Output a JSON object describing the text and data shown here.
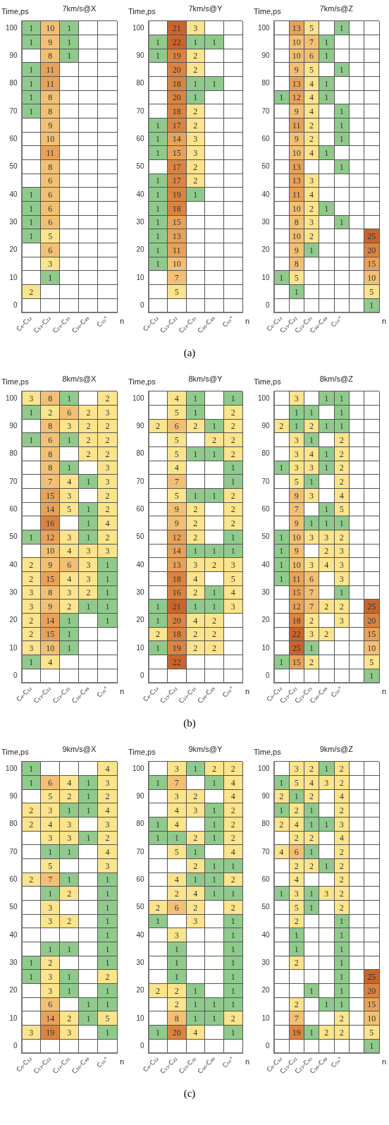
{
  "chart_data": [
    {
      "type": "heatmap",
      "title": "7km/s@X",
      "xlabel": "n",
      "ylabel": "Time,ps",
      "grid": true,
      "data_labels": true,
      "categories": [
        "C₆-C₁₂",
        "C₁₃-C₂₂",
        "C₂₃-C₃₅",
        "C₃₆-C₄₉",
        "C₅₀⁺"
      ],
      "y_categories": [
        "100",
        null,
        "90",
        null,
        "80",
        null,
        "70",
        null,
        "60",
        null,
        "50",
        null,
        "40",
        null,
        "30",
        null,
        "20",
        null,
        "10",
        null,
        "0"
      ],
      "cells": [
        [
          1,
          10,
          1,
          null,
          null
        ],
        [
          1,
          9,
          1,
          null,
          null
        ],
        [
          null,
          8,
          1,
          null,
          null
        ],
        [
          1,
          11,
          null,
          null,
          null
        ],
        [
          1,
          11,
          null,
          null,
          null
        ],
        [
          1,
          8,
          null,
          null,
          null
        ],
        [
          1,
          8,
          null,
          null,
          null
        ],
        [
          null,
          9,
          null,
          null,
          null
        ],
        [
          null,
          10,
          null,
          null,
          null
        ],
        [
          null,
          11,
          null,
          null,
          null
        ],
        [
          null,
          8,
          null,
          null,
          null
        ],
        [
          null,
          6,
          null,
          null,
          null
        ],
        [
          1,
          6,
          null,
          null,
          null
        ],
        [
          1,
          6,
          null,
          null,
          null
        ],
        [
          1,
          6,
          null,
          null,
          null
        ],
        [
          1,
          5,
          null,
          null,
          null
        ],
        [
          null,
          6,
          null,
          null,
          null
        ],
        [
          null,
          3,
          null,
          null,
          null
        ],
        [
          null,
          1,
          null,
          null,
          null
        ],
        [
          2,
          null,
          null,
          null,
          null
        ],
        [
          null,
          null,
          null,
          null,
          null
        ]
      ]
    },
    {
      "type": "heatmap",
      "title": "7km/s@Y",
      "xlabel": "n",
      "ylabel": "Time,ps",
      "grid": true,
      "data_labels": true,
      "annotations": [
        "(a)"
      ],
      "categories": [
        "C₆-C₁₂",
        "C₁₃-C₂₂",
        "C₂₃-C₃₅",
        "C₃₆-C₄₉",
        "C₅₀⁺"
      ],
      "y_categories": [
        "100",
        null,
        "90",
        null,
        "80",
        null,
        "70",
        null,
        "60",
        null,
        "50",
        null,
        "40",
        null,
        "30",
        null,
        "20",
        null,
        "10",
        null,
        "0"
      ],
      "cells": [
        [
          null,
          21,
          3,
          null,
          null
        ],
        [
          1,
          22,
          1,
          1,
          null
        ],
        [
          1,
          19,
          2,
          null,
          null
        ],
        [
          null,
          20,
          2,
          null,
          null
        ],
        [
          null,
          18,
          1,
          1,
          null
        ],
        [
          null,
          20,
          1,
          null,
          null
        ],
        [
          null,
          18,
          2,
          null,
          null
        ],
        [
          1,
          17,
          2,
          null,
          null
        ],
        [
          1,
          14,
          3,
          null,
          null
        ],
        [
          1,
          15,
          3,
          null,
          null
        ],
        [
          null,
          17,
          2,
          null,
          null
        ],
        [
          1,
          17,
          2,
          null,
          null
        ],
        [
          1,
          19,
          1,
          null,
          null
        ],
        [
          1,
          18,
          null,
          null,
          null
        ],
        [
          1,
          15,
          null,
          null,
          null
        ],
        [
          1,
          13,
          null,
          null,
          null
        ],
        [
          1,
          11,
          null,
          null,
          null
        ],
        [
          1,
          10,
          null,
          null,
          null
        ],
        [
          null,
          7,
          null,
          null,
          null
        ],
        [
          null,
          5,
          null,
          null,
          null
        ],
        [
          null,
          null,
          null,
          null,
          null
        ]
      ]
    },
    {
      "type": "heatmap",
      "title": "7km/s@Z",
      "xlabel": "n",
      "ylabel": "Time,ps",
      "grid": true,
      "data_labels": true,
      "categories": [
        "C₆-C₁₂",
        "C₁₃-C₂₂",
        "C₂₃-C₃₅",
        "C₃₆-C₄₉",
        "C₅₀⁺",
        null,
        null
      ],
      "y_categories": [
        "100",
        null,
        "90",
        null,
        "80",
        null,
        "70",
        null,
        "60",
        null,
        "50",
        null,
        "40",
        null,
        "30",
        null,
        "20",
        null,
        "10",
        null,
        "0"
      ],
      "cells": [
        [
          null,
          13,
          5,
          null,
          1,
          null,
          null
        ],
        [
          null,
          10,
          7,
          1,
          null,
          null,
          null
        ],
        [
          null,
          10,
          6,
          1,
          null,
          null,
          null
        ],
        [
          null,
          9,
          5,
          null,
          1,
          null,
          null
        ],
        [
          null,
          13,
          4,
          1,
          null,
          null,
          null
        ],
        [
          1,
          12,
          4,
          1,
          null,
          null,
          null
        ],
        [
          null,
          9,
          4,
          null,
          1,
          null,
          null
        ],
        [
          null,
          11,
          2,
          null,
          1,
          null,
          null
        ],
        [
          null,
          9,
          2,
          null,
          1,
          null,
          null
        ],
        [
          null,
          10,
          4,
          1,
          null,
          null,
          null
        ],
        [
          null,
          13,
          null,
          null,
          1,
          null,
          null
        ],
        [
          null,
          13,
          3,
          null,
          null,
          null,
          null
        ],
        [
          null,
          11,
          4,
          null,
          null,
          null,
          null
        ],
        [
          null,
          10,
          2,
          1,
          null,
          null,
          null
        ],
        [
          null,
          8,
          3,
          null,
          1,
          null,
          null
        ],
        [
          null,
          10,
          2,
          null,
          null,
          null,
          25
        ],
        [
          null,
          9,
          1,
          null,
          null,
          null,
          20
        ],
        [
          null,
          8,
          null,
          null,
          null,
          null,
          15
        ],
        [
          1,
          5,
          null,
          null,
          null,
          null,
          10
        ],
        [
          null,
          1,
          null,
          null,
          null,
          null,
          5
        ],
        [
          null,
          null,
          null,
          null,
          null,
          null,
          1
        ]
      ]
    },
    {
      "type": "heatmap",
      "title": "8km/s@X",
      "xlabel": "n",
      "ylabel": "Time,ps",
      "grid": true,
      "data_labels": true,
      "categories": [
        "C₆-C₁₂",
        "C₁₃-C₂₂",
        "C₂₃-C₃₅",
        "C₃₆-C₄₉",
        "C₅₀⁺"
      ],
      "y_categories": [
        "100",
        null,
        "90",
        null,
        "80",
        null,
        "70",
        null,
        "60",
        null,
        "50",
        null,
        "40",
        null,
        "30",
        null,
        "20",
        null,
        "10",
        null,
        "0"
      ],
      "cells": [
        [
          3,
          8,
          1,
          null,
          2
        ],
        [
          1,
          2,
          6,
          2,
          3
        ],
        [
          null,
          8,
          3,
          2,
          2
        ],
        [
          1,
          6,
          1,
          2,
          2
        ],
        [
          null,
          8,
          null,
          2,
          2
        ],
        [
          null,
          8,
          1,
          null,
          3
        ],
        [
          null,
          7,
          4,
          1,
          3
        ],
        [
          null,
          15,
          3,
          null,
          2
        ],
        [
          null,
          14,
          5,
          1,
          2
        ],
        [
          null,
          16,
          null,
          1,
          4
        ],
        [
          1,
          12,
          3,
          1,
          2
        ],
        [
          null,
          10,
          4,
          3,
          3
        ],
        [
          2,
          9,
          6,
          3,
          1
        ],
        [
          2,
          15,
          4,
          3,
          1
        ],
        [
          3,
          8,
          3,
          2,
          1
        ],
        [
          3,
          9,
          2,
          1,
          1
        ],
        [
          2,
          14,
          1,
          null,
          1
        ],
        [
          2,
          15,
          1,
          null,
          null
        ],
        [
          3,
          10,
          1,
          null,
          null
        ],
        [
          1,
          4,
          null,
          null,
          null
        ],
        [
          null,
          null,
          null,
          null,
          null
        ]
      ]
    },
    {
      "type": "heatmap",
      "title": "8km/s@Y",
      "xlabel": "n",
      "ylabel": "Time,ps",
      "grid": true,
      "data_labels": true,
      "annotations": [
        "(b)"
      ],
      "categories": [
        "C₆-C₁₂",
        "C₁₃-C₂₂",
        "C₂₃-C₃₅",
        "C₃₆-C₄₉",
        "C₅₀⁺"
      ],
      "y_categories": [
        "100",
        null,
        "90",
        null,
        "80",
        null,
        "70",
        null,
        "60",
        null,
        "50",
        null,
        "40",
        null,
        "30",
        null,
        "20",
        null,
        "10",
        null,
        "0"
      ],
      "cells": [
        [
          null,
          4,
          1,
          null,
          1
        ],
        [
          null,
          5,
          1,
          null,
          2
        ],
        [
          2,
          6,
          2,
          1,
          2
        ],
        [
          null,
          5,
          null,
          2,
          2
        ],
        [
          null,
          5,
          1,
          1,
          2
        ],
        [
          null,
          4,
          null,
          null,
          1
        ],
        [
          null,
          7,
          null,
          null,
          1
        ],
        [
          null,
          5,
          1,
          1,
          2
        ],
        [
          null,
          9,
          2,
          null,
          2
        ],
        [
          null,
          9,
          2,
          null,
          2
        ],
        [
          null,
          12,
          2,
          null,
          1
        ],
        [
          null,
          14,
          1,
          1,
          1
        ],
        [
          null,
          13,
          3,
          2,
          3
        ],
        [
          null,
          18,
          4,
          null,
          5
        ],
        [
          null,
          16,
          2,
          1,
          4
        ],
        [
          1,
          21,
          1,
          1,
          3
        ],
        [
          1,
          20,
          4,
          2,
          null
        ],
        [
          2,
          18,
          2,
          2,
          null
        ],
        [
          1,
          19,
          2,
          2,
          null
        ],
        [
          null,
          22,
          null,
          null,
          null
        ],
        [
          null,
          null,
          null,
          null,
          null
        ]
      ]
    },
    {
      "type": "heatmap",
      "title": "8km/s@Z",
      "xlabel": "n",
      "ylabel": "Time,ps",
      "grid": true,
      "data_labels": true,
      "categories": [
        "C₆-C₁₂",
        "C₁₃-C₂₂",
        "C₂₃-C₃₅",
        "C₃₆-C₄₉",
        "C₅₀⁺",
        null,
        null
      ],
      "y_categories": [
        "100",
        null,
        "90",
        null,
        "80",
        null,
        "70",
        null,
        "60",
        null,
        "50",
        null,
        "40",
        null,
        "30",
        null,
        "20",
        null,
        "10",
        null,
        "0"
      ],
      "cells": [
        [
          null,
          3,
          null,
          1,
          1,
          null,
          null
        ],
        [
          null,
          1,
          1,
          null,
          1,
          null,
          null
        ],
        [
          2,
          1,
          2,
          1,
          1,
          null,
          null
        ],
        [
          null,
          3,
          1,
          null,
          2,
          null,
          null
        ],
        [
          null,
          3,
          4,
          1,
          2,
          null,
          null
        ],
        [
          1,
          3,
          3,
          1,
          2,
          null,
          null
        ],
        [
          null,
          5,
          1,
          null,
          2,
          null,
          null
        ],
        [
          null,
          9,
          3,
          null,
          4,
          null,
          null
        ],
        [
          null,
          7,
          null,
          1,
          5,
          null,
          null
        ],
        [
          null,
          9,
          1,
          1,
          1,
          null,
          null
        ],
        [
          1,
          10,
          3,
          3,
          2,
          null,
          null
        ],
        [
          1,
          9,
          null,
          2,
          3,
          null,
          null
        ],
        [
          1,
          10,
          3,
          4,
          3,
          null,
          null
        ],
        [
          1,
          11,
          6,
          null,
          3,
          null,
          null
        ],
        [
          null,
          15,
          7,
          null,
          1,
          null,
          null
        ],
        [
          null,
          12,
          7,
          2,
          2,
          null,
          25
        ],
        [
          null,
          18,
          2,
          null,
          3,
          null,
          20
        ],
        [
          null,
          22,
          3,
          2,
          null,
          null,
          15
        ],
        [
          null,
          25,
          1,
          null,
          null,
          null,
          10
        ],
        [
          1,
          15,
          2,
          null,
          null,
          null,
          5
        ],
        [
          null,
          null,
          null,
          null,
          null,
          null,
          1
        ]
      ]
    },
    {
      "type": "heatmap",
      "title": "9km/s@X",
      "xlabel": "n",
      "ylabel": "Time,ps",
      "grid": true,
      "data_labels": true,
      "categories": [
        "C₆-C₁₂",
        "C₁₃-C₂₂",
        "C₂₃-C₃₅",
        "C₃₆-C₄₉",
        "C₅₀⁺"
      ],
      "y_categories": [
        "100",
        null,
        "90",
        null,
        "80",
        null,
        "70",
        null,
        "60",
        null,
        "50",
        null,
        "40",
        null,
        "30",
        null,
        "20",
        null,
        "10",
        null,
        "0"
      ],
      "cells": [
        [
          1,
          null,
          null,
          null,
          4
        ],
        [
          1,
          6,
          4,
          1,
          3
        ],
        [
          null,
          5,
          2,
          1,
          2
        ],
        [
          2,
          3,
          1,
          1,
          4
        ],
        [
          2,
          4,
          3,
          null,
          3
        ],
        [
          null,
          3,
          3,
          1,
          2
        ],
        [
          null,
          1,
          1,
          null,
          4
        ],
        [
          null,
          5,
          null,
          null,
          3
        ],
        [
          2,
          7,
          1,
          null,
          1
        ],
        [
          null,
          1,
          2,
          null,
          1
        ],
        [
          null,
          3,
          null,
          null,
          1
        ],
        [
          null,
          3,
          2,
          null,
          1
        ],
        [
          null,
          null,
          null,
          null,
          1
        ],
        [
          null,
          1,
          1,
          null,
          1
        ],
        [
          1,
          2,
          null,
          null,
          1
        ],
        [
          1,
          3,
          1,
          null,
          2
        ],
        [
          null,
          3,
          1,
          null,
          1
        ],
        [
          null,
          6,
          null,
          1,
          1
        ],
        [
          null,
          14,
          2,
          1,
          5
        ],
        [
          3,
          19,
          3,
          null,
          1
        ],
        [
          null,
          null,
          null,
          null,
          null
        ]
      ]
    },
    {
      "type": "heatmap",
      "title": "9km/s@Y",
      "xlabel": "n",
      "ylabel": "Time,ps",
      "grid": true,
      "data_labels": true,
      "annotations": [
        "(c)"
      ],
      "categories": [
        "C₆-C₁₂",
        "C₁₃-C₂₂",
        "C₂₃-C₃₅",
        "C₃₆-C₄₉",
        "C₅₀⁺"
      ],
      "y_categories": [
        "100",
        null,
        "90",
        null,
        "80",
        null,
        "70",
        null,
        "60",
        null,
        "50",
        null,
        "40",
        null,
        "30",
        null,
        "20",
        null,
        "10",
        null,
        "0"
      ],
      "cells": [
        [
          null,
          3,
          1,
          2,
          2
        ],
        [
          1,
          7,
          null,
          1,
          4
        ],
        [
          null,
          3,
          2,
          null,
          4
        ],
        [
          null,
          4,
          3,
          1,
          2
        ],
        [
          1,
          4,
          null,
          1,
          2
        ],
        [
          1,
          1,
          2,
          1,
          2
        ],
        [
          null,
          5,
          1,
          null,
          4
        ],
        [
          null,
          null,
          2,
          1,
          1
        ],
        [
          null,
          4,
          1,
          1,
          2
        ],
        [
          null,
          2,
          4,
          1,
          1
        ],
        [
          2,
          6,
          2,
          null,
          2
        ],
        [
          1,
          null,
          3,
          null,
          1
        ],
        [
          null,
          3,
          null,
          null,
          1
        ],
        [
          null,
          1,
          null,
          null,
          1
        ],
        [
          null,
          1,
          null,
          null,
          1
        ],
        [
          null,
          1,
          null,
          null,
          1
        ],
        [
          2,
          2,
          1,
          null,
          1
        ],
        [
          null,
          2,
          1,
          1,
          1
        ],
        [
          null,
          8,
          1,
          1,
          2
        ],
        [
          1,
          20,
          4,
          null,
          1
        ],
        [
          null,
          null,
          null,
          null,
          null
        ]
      ]
    },
    {
      "type": "heatmap",
      "title": "9km/s@Z",
      "xlabel": "n",
      "ylabel": "Time,ps",
      "grid": true,
      "data_labels": true,
      "categories": [
        "C₆-C₁₂",
        "C₁₃-C₂₂",
        "C₂₃-C₃₅",
        "C₃₆-C₄₉",
        "C₅₀⁺",
        null,
        null
      ],
      "y_categories": [
        "100",
        null,
        "90",
        null,
        "80",
        null,
        "70",
        null,
        "60",
        null,
        "50",
        null,
        "40",
        null,
        "30",
        null,
        "20",
        null,
        "10",
        null,
        "0"
      ],
      "cells": [
        [
          null,
          3,
          2,
          1,
          2,
          null,
          null
        ],
        [
          1,
          5,
          4,
          3,
          2,
          null,
          null
        ],
        [
          2,
          1,
          2,
          null,
          4,
          null,
          null
        ],
        [
          1,
          2,
          1,
          null,
          2,
          null,
          null
        ],
        [
          2,
          4,
          1,
          1,
          3,
          null,
          null
        ],
        [
          null,
          2,
          2,
          null,
          4,
          null,
          null
        ],
        [
          4,
          6,
          1,
          null,
          2,
          null,
          null
        ],
        [
          null,
          2,
          2,
          1,
          2,
          null,
          null
        ],
        [
          null,
          4,
          null,
          null,
          2,
          null,
          null
        ],
        [
          1,
          3,
          1,
          3,
          2,
          null,
          null
        ],
        [
          null,
          5,
          1,
          null,
          2,
          null,
          null
        ],
        [
          null,
          2,
          null,
          null,
          1,
          null,
          null
        ],
        [
          null,
          1,
          null,
          null,
          1,
          null,
          null
        ],
        [
          null,
          1,
          null,
          null,
          1,
          null,
          null
        ],
        [
          null,
          2,
          null,
          null,
          1,
          null,
          null
        ],
        [
          null,
          null,
          null,
          null,
          1,
          null,
          25
        ],
        [
          null,
          null,
          1,
          null,
          1,
          null,
          20
        ],
        [
          null,
          2,
          null,
          1,
          1,
          null,
          15
        ],
        [
          null,
          7,
          null,
          null,
          2,
          null,
          10
        ],
        [
          null,
          19,
          1,
          2,
          2,
          null,
          5
        ],
        [
          null,
          null,
          null,
          null,
          null,
          null,
          1
        ]
      ]
    }
  ]
}
